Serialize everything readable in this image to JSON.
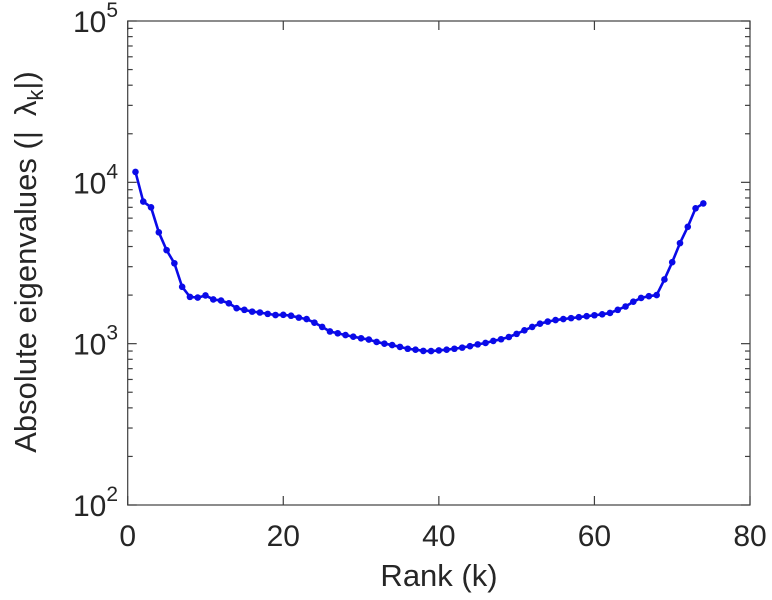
{
  "figure": {
    "background": "#ffffff",
    "axis_color": "#3f3f3f",
    "text_color": "#262626"
  },
  "labels": {
    "xlabel": "Rank (k)",
    "ylabel_prefix": "Absolute eigenvalues (|",
    "ylabel_lambda": "λ",
    "ylabel_subscript": "k",
    "ylabel_suffix": "|)",
    "y_tick_base": "10"
  },
  "chart_data": {
    "type": "line",
    "title": "",
    "xlabel": "Rank (k)",
    "ylabel": "Absolute eigenvalues (| λ_k |)",
    "x_axis": {
      "scale": "linear",
      "range": [
        0,
        80
      ],
      "ticks": [
        0,
        20,
        40,
        60,
        80
      ],
      "tick_labels": [
        "0",
        "20",
        "40",
        "60",
        "80"
      ]
    },
    "y_axis": {
      "scale": "log",
      "range": [
        100,
        100000
      ],
      "tick_exponents": [
        "2",
        "3",
        "4",
        "5"
      ],
      "minor_ticks": true
    },
    "grid": false,
    "legend": "none",
    "series": [
      {
        "name": "absolute-eigenvalues",
        "color": "#0a0ae8",
        "marker": "circle",
        "marker_radius": 3.3,
        "line_width": 2.6,
        "x": [
          1,
          2,
          3,
          4,
          5,
          6,
          7,
          8,
          9,
          10,
          11,
          12,
          13,
          14,
          15,
          16,
          17,
          18,
          19,
          20,
          21,
          22,
          23,
          24,
          25,
          26,
          27,
          28,
          29,
          30,
          31,
          32,
          33,
          34,
          35,
          36,
          37,
          38,
          39,
          40,
          41,
          42,
          43,
          44,
          45,
          46,
          47,
          48,
          49,
          50,
          51,
          52,
          53,
          54,
          55,
          56,
          57,
          58,
          59,
          60,
          61,
          62,
          63,
          64,
          65,
          66,
          67,
          68,
          69,
          70,
          71,
          72,
          73,
          74
        ],
        "y": [
          11600,
          7600,
          7000,
          4900,
          3800,
          3150,
          2250,
          1950,
          1930,
          1990,
          1880,
          1850,
          1780,
          1660,
          1620,
          1580,
          1560,
          1530,
          1505,
          1510,
          1490,
          1450,
          1420,
          1350,
          1270,
          1190,
          1160,
          1130,
          1105,
          1080,
          1060,
          1025,
          1000,
          980,
          955,
          930,
          918,
          902,
          900,
          908,
          918,
          930,
          945,
          965,
          990,
          1010,
          1040,
          1065,
          1100,
          1150,
          1210,
          1270,
          1330,
          1370,
          1400,
          1420,
          1440,
          1460,
          1480,
          1500,
          1520,
          1550,
          1620,
          1700,
          1820,
          1920,
          1970,
          2000,
          2500,
          3200,
          4200,
          5300,
          6900,
          7400
        ]
      }
    ]
  }
}
